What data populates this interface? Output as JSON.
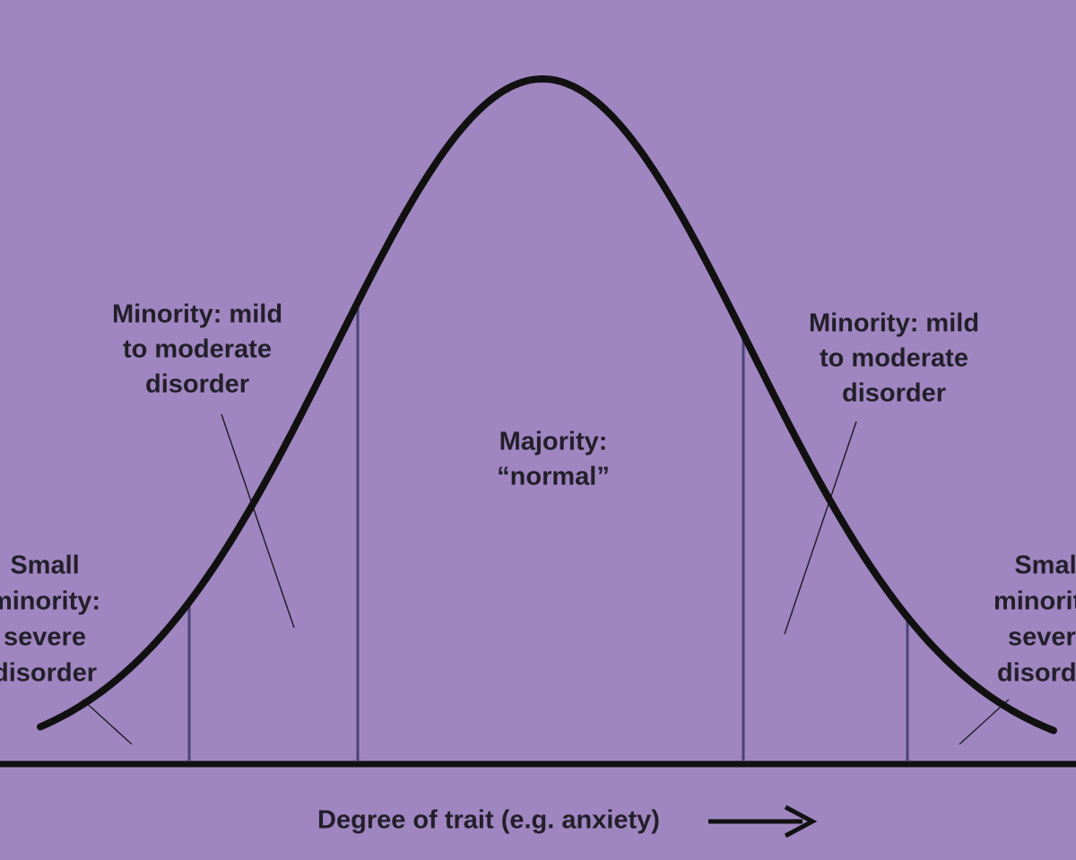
{
  "labels": {
    "left_mild": [
      "Minority: mild",
      "to moderate",
      "disorder"
    ],
    "right_mild": [
      "Minority: mild",
      "to moderate",
      "disorder"
    ],
    "majority": [
      "Majority:",
      "“normal”"
    ],
    "left_severe": [
      "Small",
      "minority:",
      "severe",
      "disorder"
    ],
    "right_severe": [
      "Small",
      "minority:",
      "severe",
      "disorder"
    ]
  },
  "axis_label": "Degree of trait (e.g. anxiety)"
}
